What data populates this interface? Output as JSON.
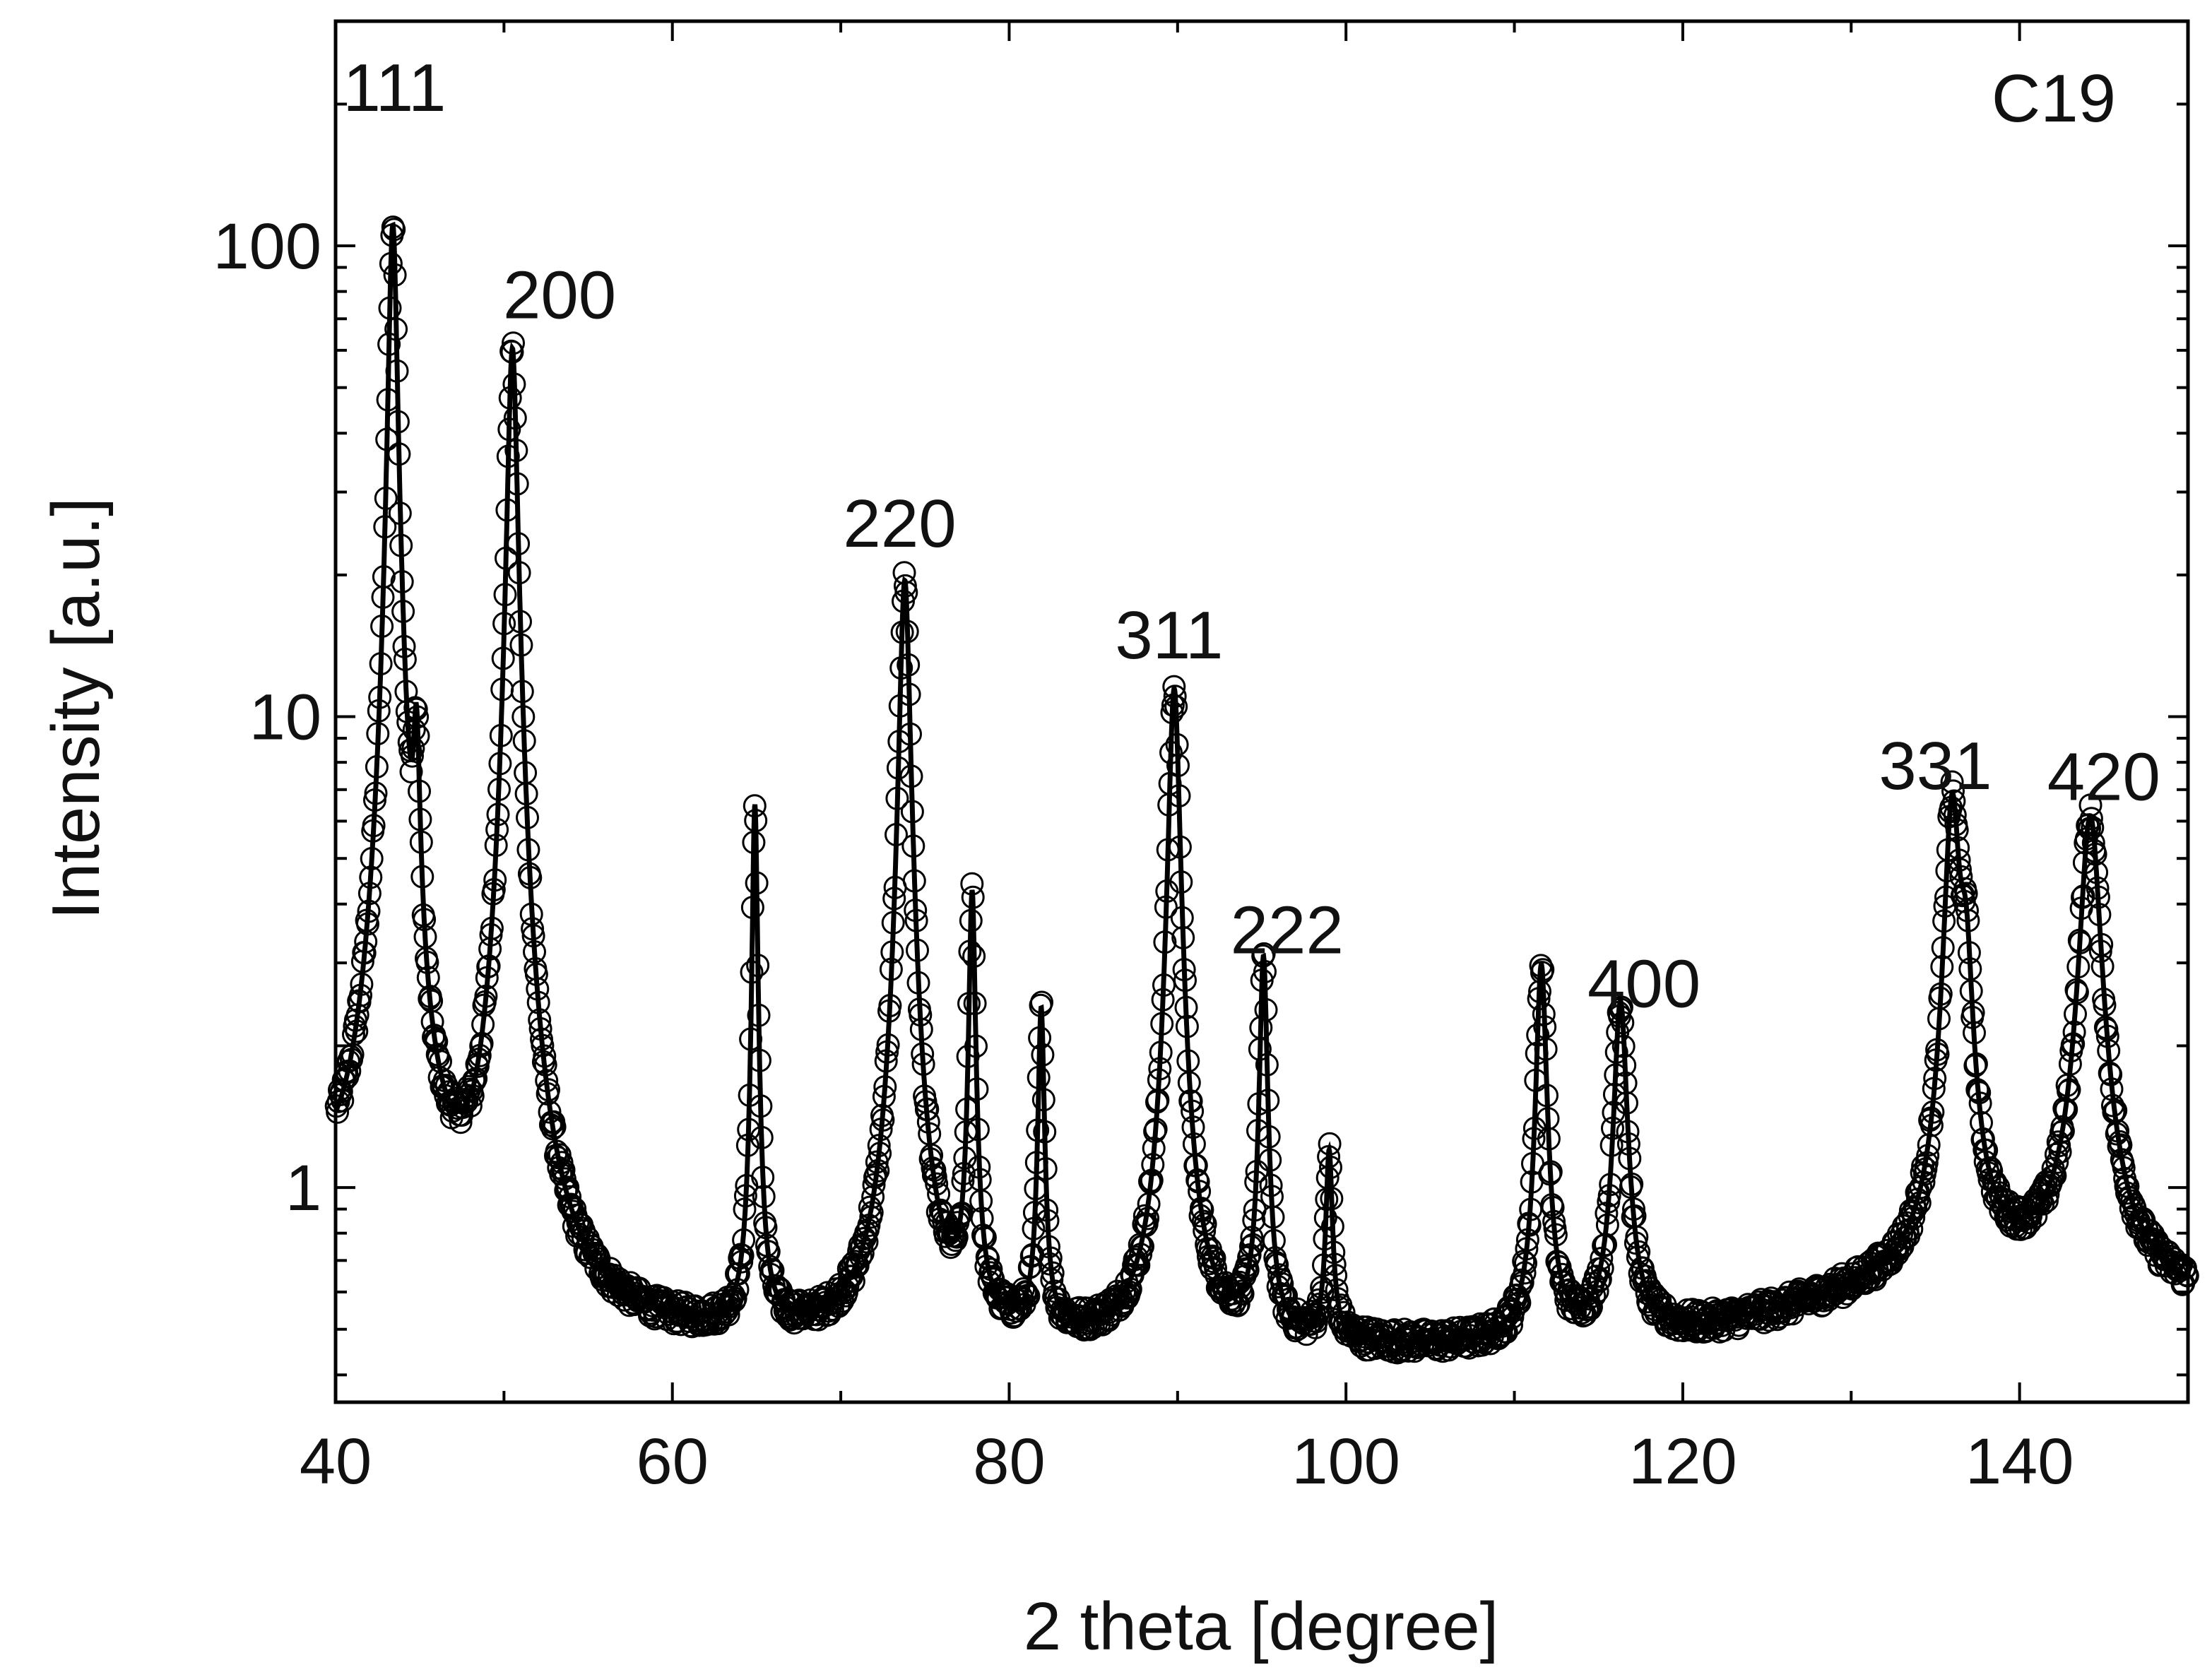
{
  "chart_data": {
    "type": "scatter",
    "sample_label": "C19",
    "xlabel": "2 theta [degree]",
    "ylabel": "Intensity [a.u.]",
    "xlim": [
      40,
      150
    ],
    "ylim": [
      0.35,
      300
    ],
    "yscale": "log",
    "grid": false,
    "x_ticks": [
      40,
      60,
      80,
      100,
      120,
      140
    ],
    "x_tick_labels": [
      "40",
      "60",
      "80",
      "100",
      "120",
      "140"
    ],
    "y_ticks": [
      1,
      10,
      100
    ],
    "y_tick_labels": [
      "1",
      "10",
      "100"
    ],
    "background": 0.45,
    "peaks": [
      {
        "center": 43.4,
        "height": 110,
        "hwhm": 0.25,
        "label": "111",
        "label_x": 43.5,
        "label_y": 160
      },
      {
        "center": 44.8,
        "height": 6.5,
        "hwhm": 0.2
      },
      {
        "center": 50.5,
        "height": 60,
        "hwhm": 0.28,
        "label": "200",
        "label_x": 53.3,
        "label_y": 58
      },
      {
        "center": 64.9,
        "height": 6.0,
        "hwhm": 0.15
      },
      {
        "center": 73.8,
        "height": 19,
        "hwhm": 0.3,
        "label": "220",
        "label_x": 73.5,
        "label_y": 19
      },
      {
        "center": 77.8,
        "height": 3.7,
        "hwhm": 0.18
      },
      {
        "center": 81.9,
        "height": 1.9,
        "hwhm": 0.18
      },
      {
        "center": 89.8,
        "height": 11,
        "hwhm": 0.32,
        "label": "311",
        "label_x": 89.5,
        "label_y": 11
      },
      {
        "center": 95.1,
        "height": 2.6,
        "hwhm": 0.22,
        "label": "222",
        "label_x": 96.5,
        "label_y": 2.6
      },
      {
        "center": 99.0,
        "height": 0.72,
        "hwhm": 0.2
      },
      {
        "center": 111.6,
        "height": 2.5,
        "hwhm": 0.3
      },
      {
        "center": 116.3,
        "height": 2.0,
        "hwhm": 0.38,
        "label": "400",
        "label_x": 117.7,
        "label_y": 2.0
      },
      {
        "center": 136.0,
        "height": 5.8,
        "hwhm": 0.45,
        "label": "331",
        "label_x": 135.0,
        "label_y": 5.8
      },
      {
        "center": 136.8,
        "height": 2.0,
        "hwhm": 0.4
      },
      {
        "center": 144.2,
        "height": 5.5,
        "hwhm": 0.6,
        "label": "420",
        "label_x": 145.0,
        "label_y": 5.5
      }
    ]
  }
}
